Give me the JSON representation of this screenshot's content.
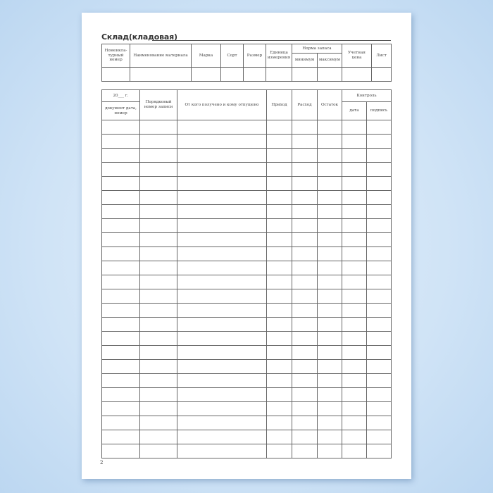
{
  "title": "Склад(кладовая)",
  "page_number": "2",
  "top_table": {
    "headers": [
      "Номенкла-турный номер",
      "Наименование материала",
      "Марка",
      "Сорт",
      "Размер",
      "Единица измерения",
      "Норма запаса",
      "Учетная цена",
      "Лист"
    ],
    "norma_sub": [
      "минимум",
      "максимум"
    ]
  },
  "main_table": {
    "year": "20___ г.",
    "doc": "документ дата, номер",
    "order": "Порядковый номер записи",
    "from_to": "От кого получено и кому отпущено",
    "income": "Приход",
    "expense": "Расход",
    "balance": "Остаток",
    "control": "Контроль",
    "control_sub": [
      "дата",
      "подпись"
    ],
    "empty_rows": 24
  },
  "colors": {
    "background": "#cfe3f6",
    "page": "#ffffff",
    "lines": "#666666"
  }
}
